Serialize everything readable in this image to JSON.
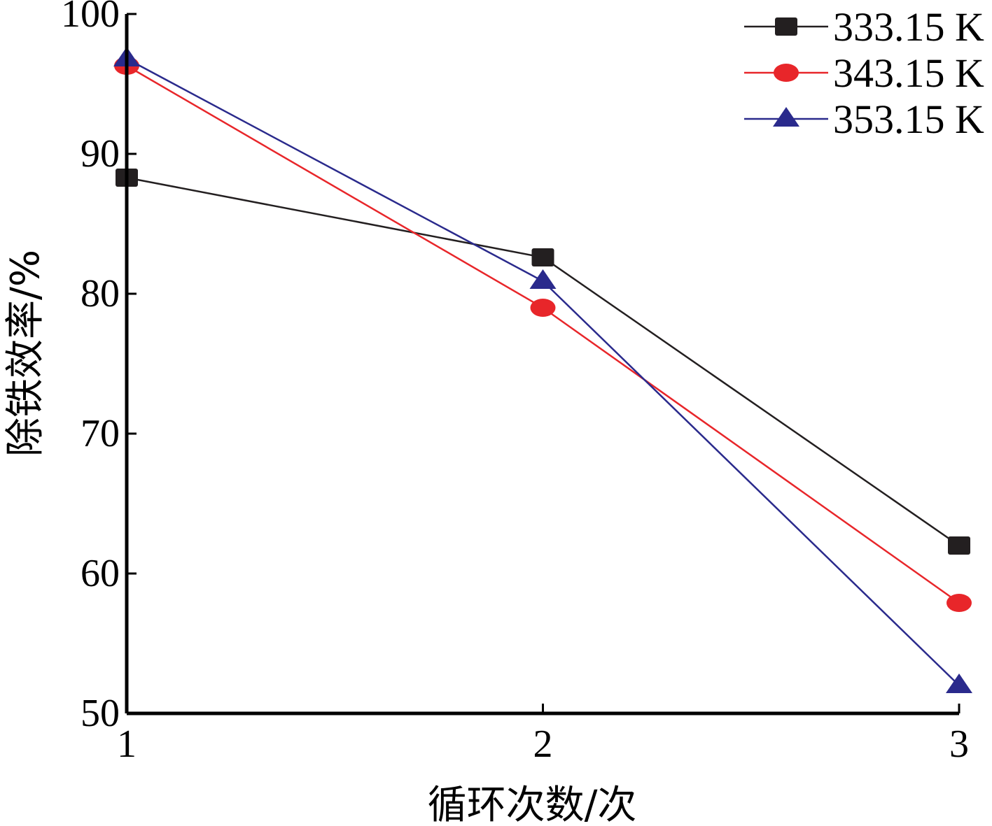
{
  "chart_data": {
    "type": "line",
    "x": [
      1,
      2,
      3
    ],
    "categories": [
      "1",
      "2",
      "3"
    ],
    "xlabel": "循环次数/次",
    "ylabel": "除铁效率/%",
    "xlim": [
      1,
      3
    ],
    "ylim": [
      50,
      100
    ],
    "yticks": [
      "50",
      "60",
      "70",
      "80",
      "90",
      "100"
    ],
    "grid": false,
    "legend_position": "top-right",
    "series": [
      {
        "name": "333.15 K",
        "values": [
          88.3,
          82.6,
          62.0
        ],
        "color": "#231f20",
        "marker": "square"
      },
      {
        "name": "343.15 K",
        "values": [
          96.3,
          79.0,
          57.9
        ],
        "color": "#e8262a",
        "marker": "circle"
      },
      {
        "name": "353.15 K",
        "values": [
          96.8,
          80.9,
          52.0
        ],
        "color": "#2a2a8c",
        "marker": "triangle"
      }
    ]
  }
}
